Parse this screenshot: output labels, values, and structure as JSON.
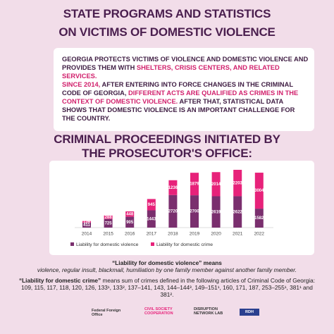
{
  "header": {
    "title": [
      "STATE PROGRAMS AND STATISTICS",
      "ON VICTIMS OF DOMESTIC VIOLENCE"
    ]
  },
  "intro": {
    "paragraphs": [
      [
        "GEORGIA PROTECTS VICTIMS OF VIOLENCE AND DOMESTIC VIOLENCE AND PROVIDES THEM WITH ",
        "SHELTERS, CRISIS CENTERS, AND RELATED SERVICES."
      ],
      [
        "SINCE 2014,",
        " AFTER ENTERING INTO FORCE CHANGES IN THE CRIMINAL CODE OF GEORGIA, ",
        "DIFFERENT ACTS ARE QUALIFIED AS CRIMES IN THE CONTEXT OF DOMESTIC VIOLENCE.",
        " AFTER THAT, STATISTICAL DATA SHOWS THAT DOMESTIC VIOLENCE IS AN IMPORTANT CHALLENGE FOR THE COUNTRY."
      ]
    ]
  },
  "chart_data": {
    "type": "stacked-bar",
    "title": [
      "CRIMINAL PROCEEDINGS INITIATED BY",
      "THE PROSECUTOR'S OFFICE:"
    ],
    "categories": [
      "2014",
      "2015",
      "2016",
      "2017",
      "2018",
      "2019",
      "2020",
      "2021",
      "2022"
    ],
    "series": [
      {
        "name": "Liability for domestic violence",
        "color": "#7a2f6e",
        "values": [
          411,
          725,
          905,
          1443,
          2720,
          2700,
          2619,
          2622,
          1582
        ]
      },
      {
        "name": "Liability for domestic crime",
        "color": "#e7227a",
        "values": [
          139,
          288,
          448,
          945,
          1236,
          1879,
          2014,
          2203,
          3004
        ]
      }
    ]
  },
  "footnotes": [
    {
      "term": "“Liability for domestic violence” means",
      "text": "violence, regular insult, blackmail, humiliation by one family member against another family member."
    },
    {
      "term": "“Liability for domestic crime”",
      "text": " means sum of crimes defined in the following articles of Criminal Code of Georgia:",
      "articles": "109, 115, 117, 118, 120, 126, 133¹, 133², 137–141, 143, 144–144³, 149–151¹, 160, 171, 187, 253–255¹, 381¹ and 381²."
    }
  ],
  "logos": [
    "Federal Foreign Office",
    "CIVIL SOCIETY COOPERATION",
    "DISRUPTION NETWORK LAB",
    "RDH"
  ]
}
